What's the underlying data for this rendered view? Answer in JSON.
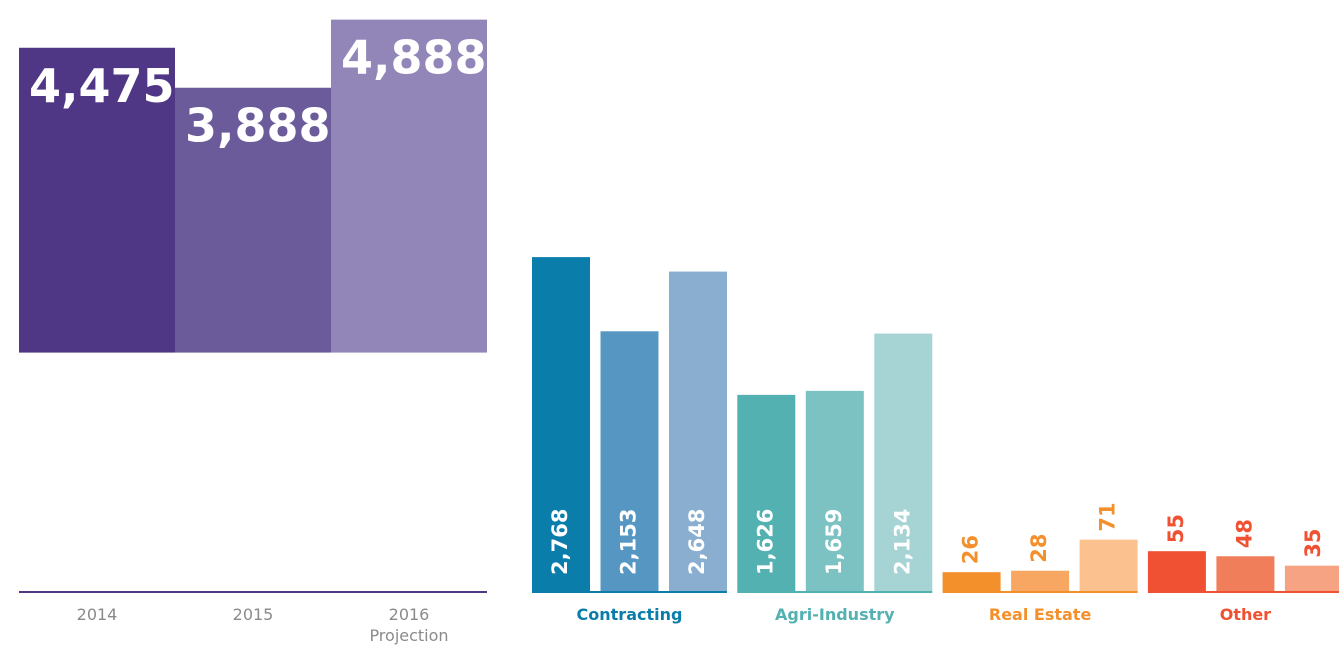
{
  "chart_data": [
    {
      "type": "bar",
      "categories": [
        "2014",
        "2015",
        "2016 Projection"
      ],
      "values": [
        4475,
        3888,
        4888
      ],
      "value_labels": [
        "4,475",
        "3,888",
        "4,888"
      ],
      "colors": [
        "#4f3785",
        "#6c5b9b",
        "#9285b8"
      ],
      "ylim": [
        -3500,
        5000
      ]
    },
    {
      "type": "grouped_bar",
      "groups": [
        {
          "name": "Contracting",
          "color": "#0a7dab",
          "values": [
            2768,
            2153,
            2648
          ],
          "value_labels": [
            "2,768",
            "2,153",
            "2,648"
          ],
          "colors": [
            "#0a7dab",
            "#5597c2",
            "#89aecf"
          ],
          "ylim": [
            0,
            4800
          ]
        },
        {
          "name": "Agri-Industry",
          "color": "#53b1b1",
          "values": [
            1626,
            1659,
            2134
          ],
          "value_labels": [
            "1,626",
            "1,659",
            "2,134"
          ],
          "colors": [
            "#53b1b1",
            "#7dc2c3",
            "#a6d3d4"
          ],
          "ylim": [
            0,
            4800
          ]
        },
        {
          "name": "Real Estate",
          "color": "#f4902c",
          "values": [
            26,
            28,
            71
          ],
          "colors": [
            "#f4902c",
            "#f8a763",
            "#fbc18f"
          ],
          "ylim": [
            0,
            800
          ]
        },
        {
          "name": "Other",
          "color": "#ef5132",
          "values": [
            55,
            48,
            35
          ],
          "colors": [
            "#ef5132",
            "#f17e5a",
            "#f5a383"
          ],
          "ylim": [
            0,
            800
          ]
        }
      ]
    }
  ]
}
